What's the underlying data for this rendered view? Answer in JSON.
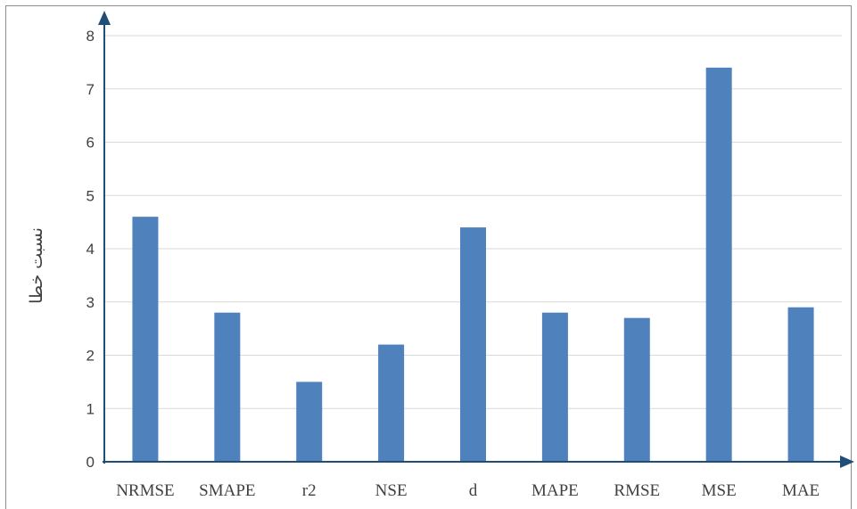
{
  "chart_data": {
    "type": "bar",
    "title": "",
    "xlabel": "",
    "ylabel": "نسبت خطا",
    "categories": [
      "NRMSE",
      "SMAPE",
      "r2",
      "NSE",
      "d",
      "MAPE",
      "RMSE",
      "MSE",
      "MAE"
    ],
    "values": [
      4.6,
      2.8,
      1.5,
      2.2,
      4.4,
      2.8,
      2.7,
      7.4,
      2.9
    ],
    "ylim": [
      0,
      8
    ],
    "yticks": [
      0,
      1,
      2,
      3,
      4,
      5,
      6,
      7,
      8
    ],
    "grid": true,
    "legend": "none",
    "colors": {
      "bar": "#4f81bd",
      "axis": "#1f4e79",
      "grid": "#d9d9d9",
      "text": "#404040"
    }
  }
}
